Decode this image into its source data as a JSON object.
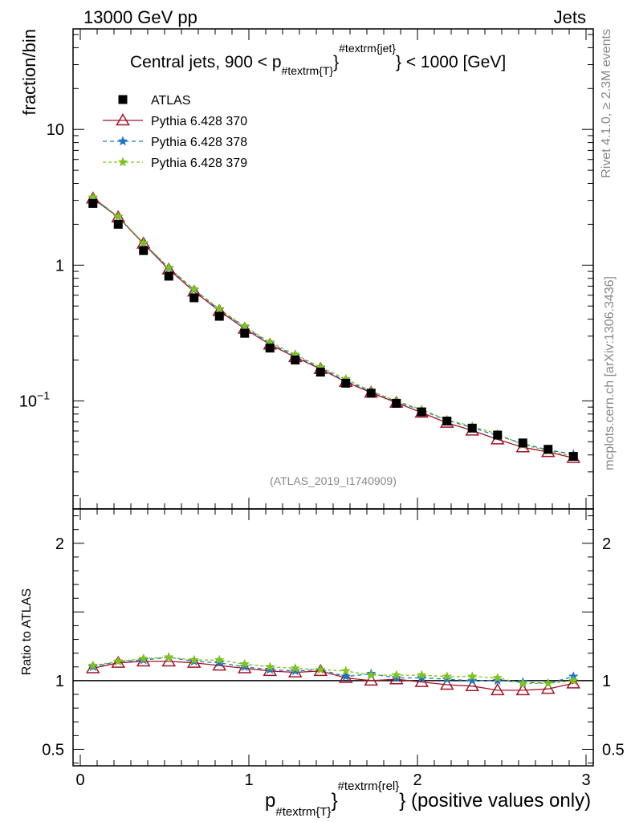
{
  "header": {
    "left": "13000 GeV pp",
    "right": "Jets"
  },
  "side_labels": {
    "rivet": "Rivet 4.1.0, ≥ 2.3M events",
    "mcplots": "mcplots.cern.ch [arXiv:1306.3436]"
  },
  "watermark": "(ATLAS_2019_I1740909)",
  "colors": {
    "atlas": "#000000",
    "p370": "#a0142a",
    "p378": "#1874cd",
    "p379": "#7fc31c"
  },
  "chart_data": {
    "type": "line",
    "title": {
      "prefix": "Central jets, 900 < p",
      "sub": "#textrm{T}",
      "sup": "#textrm{jet}",
      "suffix": "} < 1000 [GeV]"
    },
    "xlabel": {
      "main": "p",
      "sub": "#textrm{T}",
      "sup": "#textrm{rel}",
      "suffix": "} (positive values only)"
    },
    "ylabel_main": "fraction/bin",
    "ylabel_ratio": "Ratio to ATLAS",
    "xlim": [
      0,
      3
    ],
    "ylim_main": [
      0.016,
      55
    ],
    "ylim_ratio": [
      0.38,
      2.25
    ],
    "yscale_main": "log",
    "x_ticks": [
      {
        "value": 0,
        "label": "0"
      },
      {
        "value": 1,
        "label": "1"
      },
      {
        "value": 2,
        "label": "2"
      },
      {
        "value": 3,
        "label": "3"
      }
    ],
    "y_ticks_main": [
      {
        "value": 10,
        "label": "10"
      },
      {
        "value": 1,
        "label": "1"
      },
      {
        "value": 0.1,
        "label": "10",
        "exp": "−1"
      }
    ],
    "y_ticks_ratio": [
      {
        "value": 2,
        "label": "2"
      },
      {
        "value": 1,
        "label": "1"
      },
      {
        "value": 0.5,
        "label": "0.5"
      }
    ],
    "x": [
      0.075,
      0.225,
      0.375,
      0.525,
      0.675,
      0.825,
      0.975,
      1.125,
      1.275,
      1.425,
      1.575,
      1.725,
      1.875,
      2.025,
      2.175,
      2.325,
      2.475,
      2.625,
      2.775,
      2.925
    ],
    "legend_position": "top-left",
    "series": [
      {
        "name": "ATLAS",
        "style": "square",
        "color_key": "atlas",
        "values": [
          2.85,
          2.0,
          1.28,
          0.83,
          0.575,
          0.42,
          0.315,
          0.245,
          0.2,
          0.163,
          0.135,
          0.114,
          0.096,
          0.083,
          0.071,
          0.063,
          0.056,
          0.049,
          0.044,
          0.039
        ]
      },
      {
        "name": "Pythia 6.428 370",
        "style": "triangle",
        "color_key": "p370",
        "values": [
          3.1,
          2.25,
          1.44,
          0.93,
          0.64,
          0.46,
          0.34,
          0.26,
          0.21,
          0.172,
          0.138,
          0.115,
          0.097,
          0.082,
          0.069,
          0.0605,
          0.052,
          0.0455,
          0.042,
          0.038
        ]
      },
      {
        "name": "Pythia 6.428 378",
        "style": "star",
        "color_key": "p378",
        "values": [
          3.14,
          2.27,
          1.45,
          0.95,
          0.66,
          0.47,
          0.35,
          0.265,
          0.215,
          0.175,
          0.14,
          0.118,
          0.099,
          0.085,
          0.072,
          0.0635,
          0.0555,
          0.0485,
          0.0435,
          0.0405
        ]
      },
      {
        "name": "Pythia 6.428 379",
        "style": "star",
        "color_key": "p379",
        "values": [
          3.16,
          2.28,
          1.46,
          0.96,
          0.665,
          0.475,
          0.355,
          0.27,
          0.22,
          0.177,
          0.145,
          0.118,
          0.1,
          0.0865,
          0.0725,
          0.065,
          0.057,
          0.0475,
          0.043,
          0.039
        ]
      }
    ],
    "ratios": [
      {
        "name": "Pythia 6.428 370",
        "color_key": "p370",
        "style": "triangle",
        "values": [
          1.09,
          1.13,
          1.14,
          1.14,
          1.13,
          1.11,
          1.09,
          1.07,
          1.06,
          1.07,
          1.02,
          1.0,
          1.01,
          0.99,
          0.97,
          0.96,
          0.93,
          0.93,
          0.94,
          0.98
        ]
      },
      {
        "name": "Pythia 6.428 378",
        "color_key": "p378",
        "style": "star",
        "values": [
          1.1,
          1.14,
          1.15,
          1.17,
          1.14,
          1.13,
          1.1,
          1.08,
          1.07,
          1.08,
          1.03,
          1.05,
          1.02,
          1.02,
          1.01,
          1.0,
          1.0,
          0.99,
          0.98,
          1.03
        ]
      },
      {
        "name": "Pythia 6.428 379",
        "color_key": "p379",
        "style": "star",
        "values": [
          1.11,
          1.14,
          1.16,
          1.17,
          1.15,
          1.15,
          1.12,
          1.1,
          1.09,
          1.08,
          1.07,
          1.04,
          1.04,
          1.04,
          1.03,
          1.03,
          1.02,
          0.98,
          0.98,
          1.0
        ]
      }
    ]
  }
}
